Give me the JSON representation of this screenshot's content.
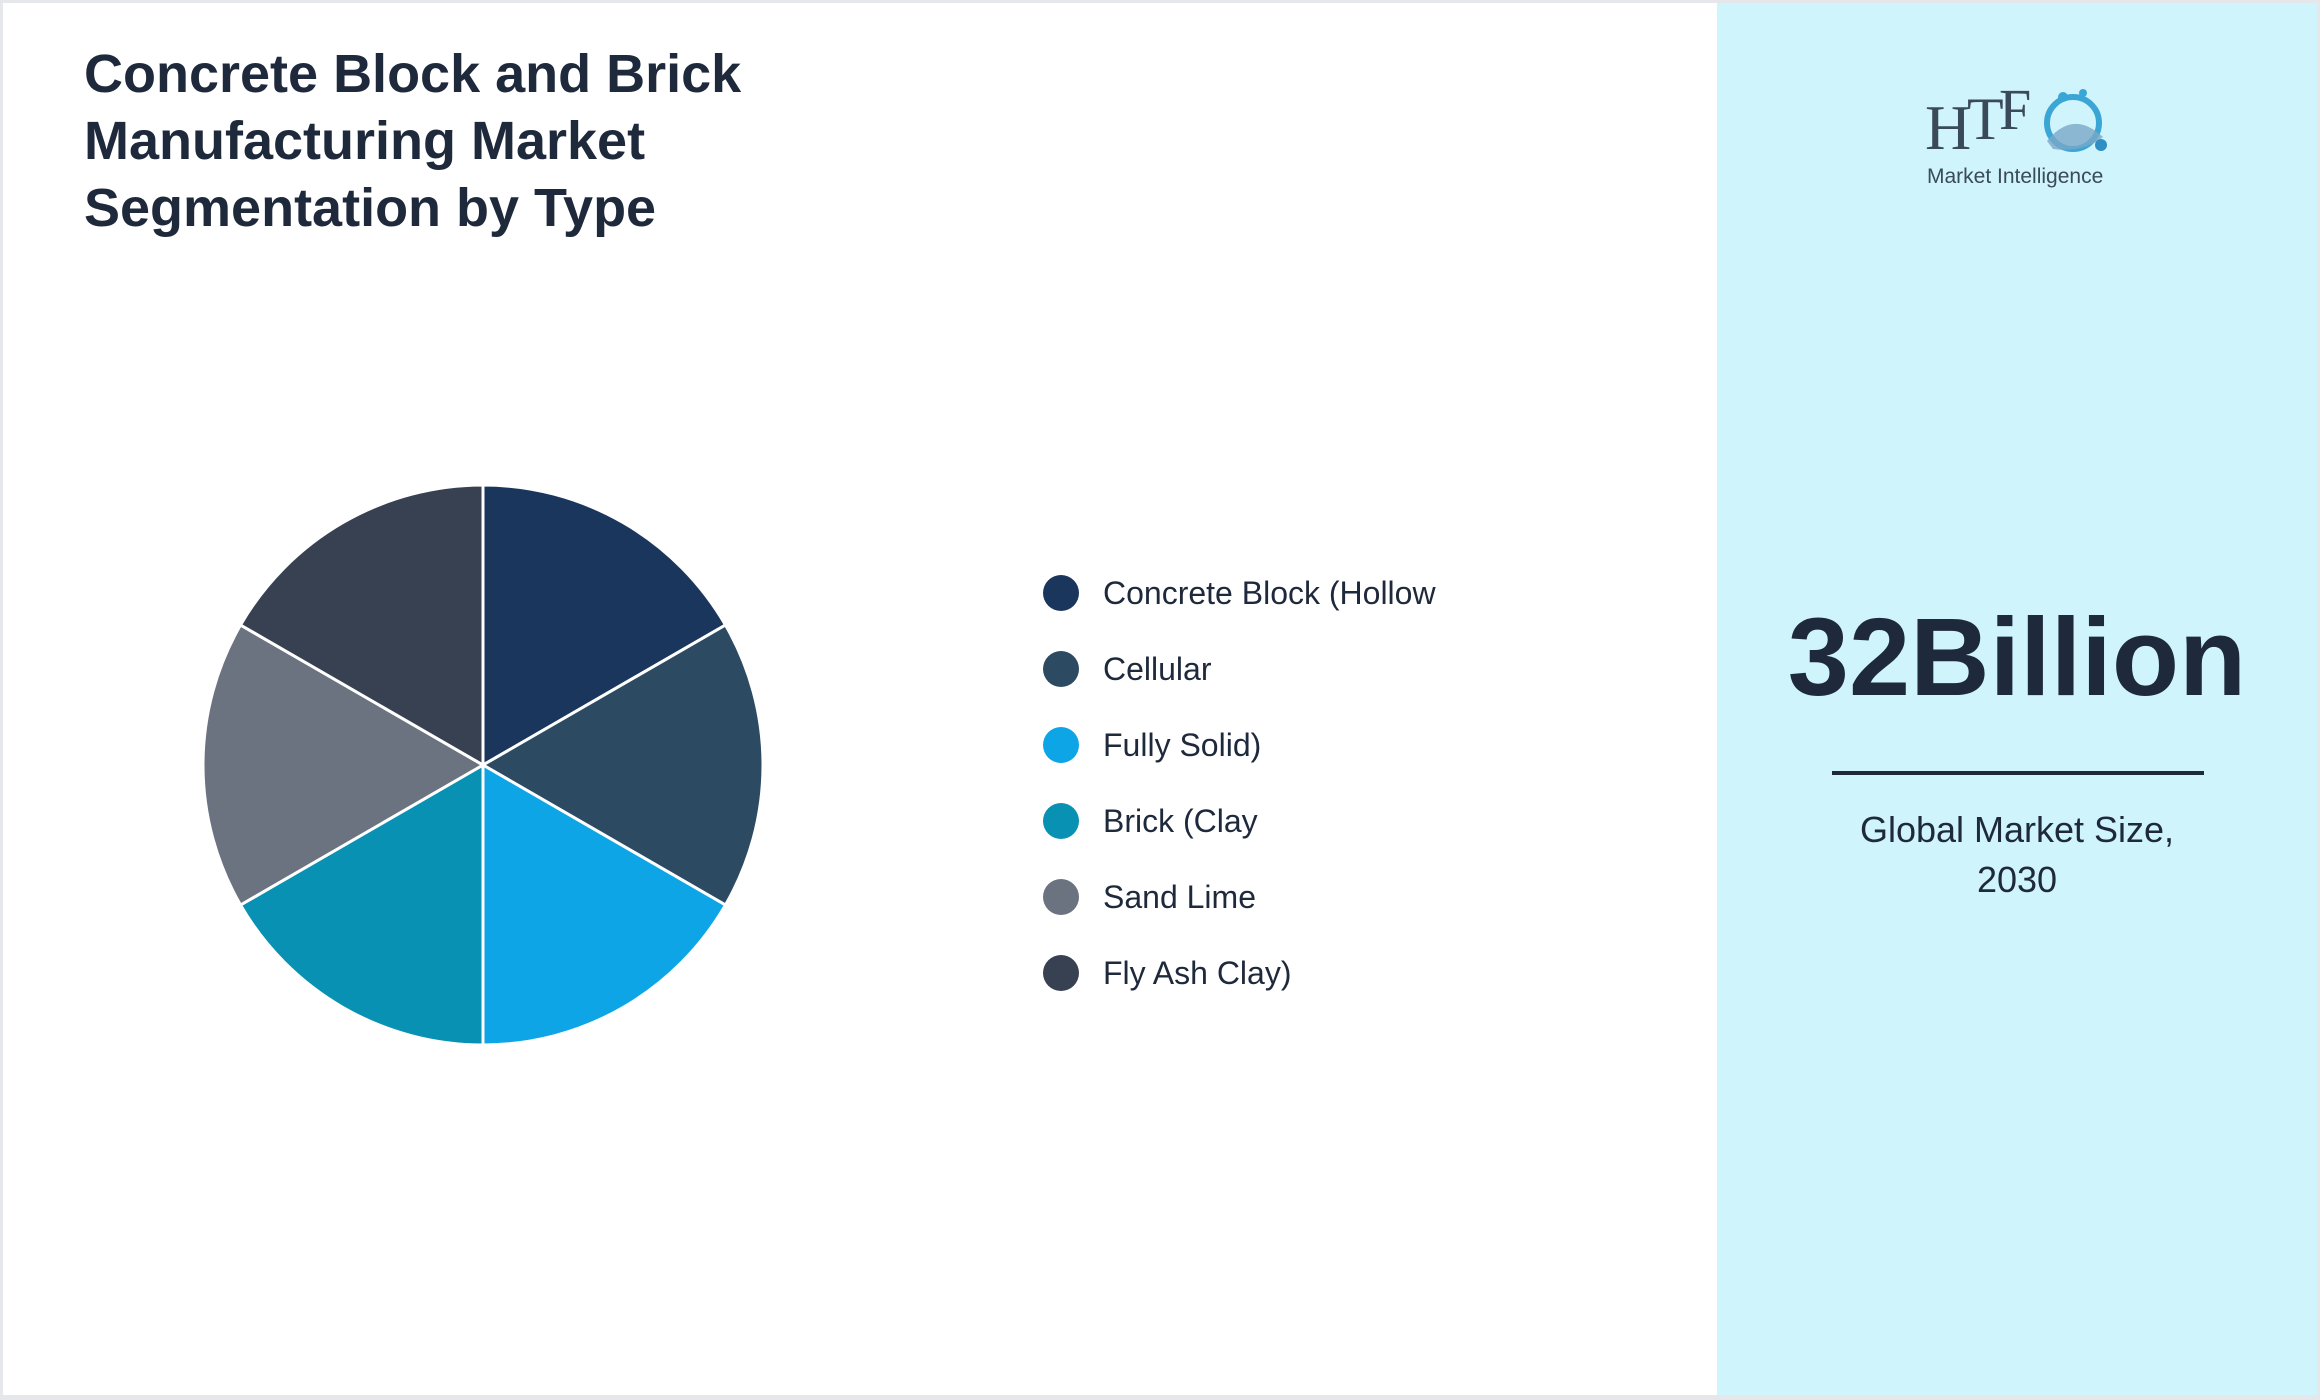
{
  "title": "Concrete Block and Brick Manufacturing Market Segmentation by Type",
  "logo": {
    "brand": "HTF",
    "tagline": "Market Intelligence"
  },
  "market_size": {
    "value": "32Billion",
    "caption": "Global Market Size, 2030"
  },
  "chart_data": {
    "type": "pie",
    "title": "Concrete Block and Brick Manufacturing Market Segmentation by Type",
    "categories": [
      "Concrete Block (Hollow",
      "Cellular",
      "Fully Solid)",
      "Brick (Clay",
      "Sand Lime",
      "Fly Ash Clay)"
    ],
    "values": [
      16.67,
      16.67,
      16.67,
      16.67,
      16.67,
      16.67
    ],
    "colors": [
      "#1b365d",
      "#2d4a63",
      "#0ea5e6",
      "#0891b2",
      "#6b7280",
      "#374151"
    ],
    "legend_position": "right"
  }
}
